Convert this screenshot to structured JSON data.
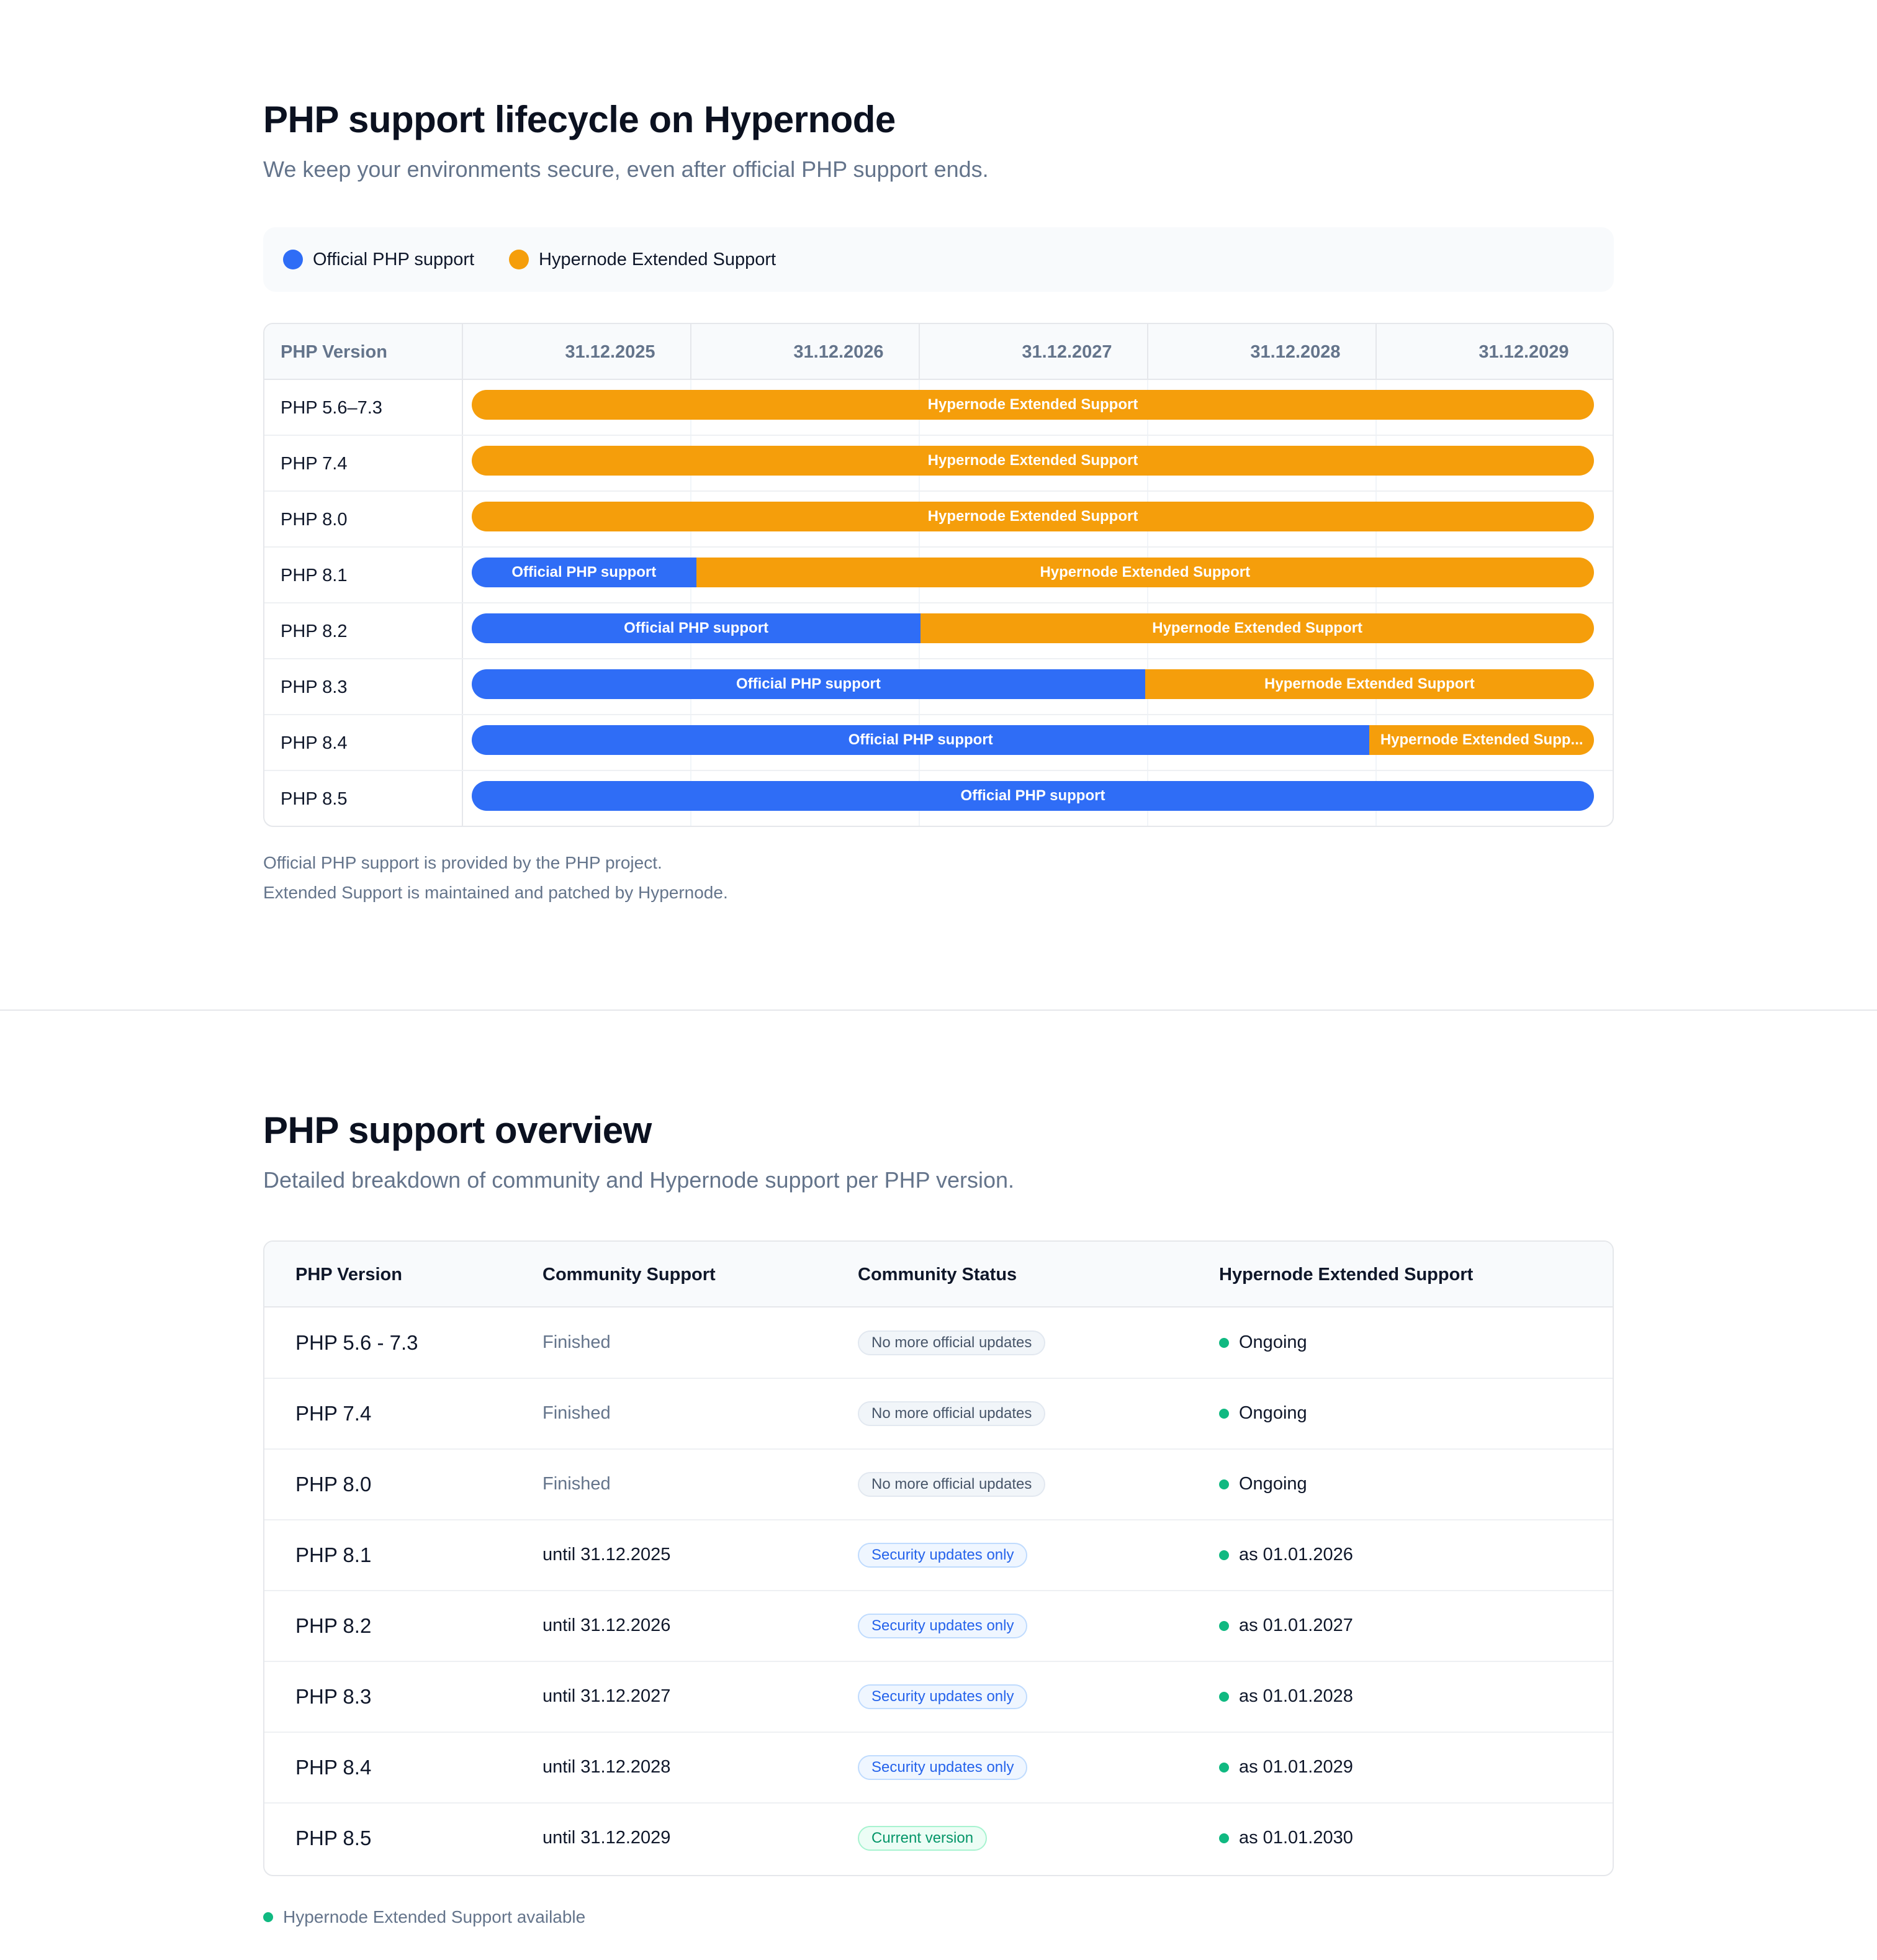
{
  "lifecycle": {
    "title": "PHP support lifecycle on Hypernode",
    "subtitle": "We keep your environments secure, even after official PHP support ends.",
    "legend": [
      {
        "label": "Official PHP support",
        "color": "#2f6df6"
      },
      {
        "label": "Hypernode Extended Support",
        "color": "#f59e0b"
      }
    ],
    "header_label": "PHP Version",
    "years": [
      "31.12.2025",
      "31.12.2026",
      "31.12.2027",
      "31.12.2028",
      "31.12.2029"
    ],
    "official_label": "Official PHP support",
    "extended_label": "Hypernode Extended Support",
    "extended_label_truncated": "Hypernode Extended Supp...",
    "rows": [
      {
        "version": "PHP 5.6–7.3",
        "official_years": 0
      },
      {
        "version": "PHP 7.4",
        "official_years": 0
      },
      {
        "version": "PHP 8.0",
        "official_years": 0
      },
      {
        "version": "PHP 8.1",
        "official_years": 1
      },
      {
        "version": "PHP 8.2",
        "official_years": 2
      },
      {
        "version": "PHP 8.3",
        "official_years": 3
      },
      {
        "version": "PHP 8.4",
        "official_years": 4
      },
      {
        "version": "PHP 8.5",
        "official_years": 5
      }
    ],
    "notes": [
      "Official PHP support is provided by the PHP project.",
      "Extended Support is maintained and patched by Hypernode."
    ]
  },
  "overview": {
    "title": "PHP support overview",
    "subtitle": "Detailed breakdown of community and Hypernode support per PHP version.",
    "columns": [
      "PHP Version",
      "Community Support",
      "Community Status",
      "Hypernode Extended Support"
    ],
    "rows": [
      {
        "version": "PHP 5.6 - 7.3",
        "community": "Finished",
        "status": "No more official updates",
        "status_kind": "gray",
        "extended": "Ongoing"
      },
      {
        "version": "PHP 7.4",
        "community": "Finished",
        "status": "No more official updates",
        "status_kind": "gray",
        "extended": "Ongoing"
      },
      {
        "version": "PHP 8.0",
        "community": "Finished",
        "status": "No more official updates",
        "status_kind": "gray",
        "extended": "Ongoing"
      },
      {
        "version": "PHP 8.1",
        "community": "until 31.12.2025",
        "status": "Security updates only",
        "status_kind": "blue",
        "extended": "as 01.01.2026"
      },
      {
        "version": "PHP 8.2",
        "community": "until 31.12.2026",
        "status": "Security updates only",
        "status_kind": "blue",
        "extended": "as 01.01.2027"
      },
      {
        "version": "PHP 8.3",
        "community": "until 31.12.2027",
        "status": "Security updates only",
        "status_kind": "blue",
        "extended": "as 01.01.2028"
      },
      {
        "version": "PHP 8.4",
        "community": "until 31.12.2028",
        "status": "Security updates only",
        "status_kind": "blue",
        "extended": "as 01.01.2029"
      },
      {
        "version": "PHP 8.5",
        "community": "until 31.12.2029",
        "status": "Current version",
        "status_kind": "green",
        "extended": "as 01.01.2030"
      }
    ],
    "footnote": "Hypernode Extended Support available"
  }
}
